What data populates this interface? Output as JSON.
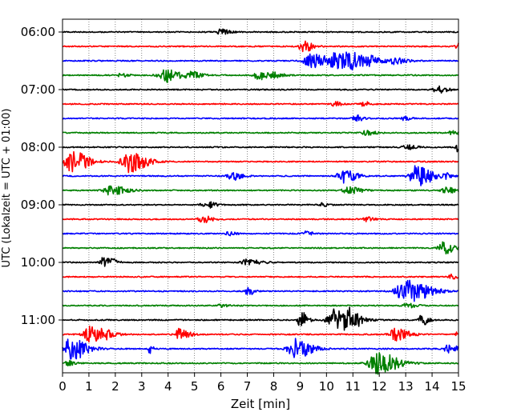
{
  "chart_data": {
    "type": "line",
    "title": "",
    "xlabel": "Zeit  [min]",
    "ylabel": "UTC (Lokalzeit = UTC + 01:00)",
    "xlim": [
      0,
      15
    ],
    "x_ticks": [
      0,
      1,
      2,
      3,
      4,
      5,
      6,
      7,
      8,
      9,
      10,
      11,
      12,
      13,
      14,
      15
    ],
    "x_tick_labels": [
      "0",
      "1",
      "2",
      "3",
      "4",
      "5",
      "6",
      "7",
      "8",
      "9",
      "10",
      "11",
      "12",
      "13",
      "14",
      "15"
    ],
    "y_tick_labels": [
      "06:00",
      "07:00",
      "08:00",
      "09:00",
      "10:00",
      "11:00"
    ],
    "grid": "vertical dotted",
    "colors": {
      "black": "#000000",
      "red": "#ff0000",
      "blue": "#0000ff",
      "green": "#008000"
    },
    "series": [
      {
        "start": "06:00",
        "color": "black",
        "events": [
          [
            6.0,
            0.25,
            0.3
          ]
        ]
      },
      {
        "start": "06:15",
        "color": "red",
        "events": [
          [
            9.1,
            0.5,
            0.3
          ],
          [
            15.0,
            0.3,
            0.2
          ]
        ]
      },
      {
        "start": "06:30",
        "color": "blue",
        "events": [
          [
            9.4,
            0.6,
            0.5
          ],
          [
            10.3,
            0.6,
            0.5
          ],
          [
            10.9,
            0.6,
            0.5
          ],
          [
            11.7,
            0.3,
            0.3
          ],
          [
            12.5,
            0.3,
            0.4
          ]
        ]
      },
      {
        "start": "06:45",
        "color": "green",
        "events": [
          [
            2.2,
            0.2,
            0.2
          ],
          [
            3.9,
            0.6,
            0.5
          ],
          [
            4.9,
            0.3,
            0.3
          ],
          [
            7.4,
            0.4,
            0.3
          ],
          [
            8.0,
            0.2,
            0.3
          ]
        ]
      },
      {
        "start": "07:00",
        "color": "black",
        "events": [
          [
            14.2,
            0.3,
            0.3
          ]
        ]
      },
      {
        "start": "07:15",
        "color": "red",
        "events": [
          [
            10.3,
            0.2,
            0.2
          ],
          [
            11.4,
            0.2,
            0.2
          ]
        ]
      },
      {
        "start": "07:30",
        "color": "blue",
        "events": [
          [
            11.1,
            0.3,
            0.2
          ],
          [
            12.9,
            0.2,
            0.2
          ]
        ]
      },
      {
        "start": "07:45",
        "color": "green",
        "events": [
          [
            11.5,
            0.2,
            0.3
          ],
          [
            14.8,
            0.2,
            0.3
          ]
        ]
      },
      {
        "start": "08:00",
        "color": "black",
        "events": [
          [
            13.0,
            0.2,
            0.3
          ],
          [
            15.0,
            0.5,
            0.2
          ]
        ]
      },
      {
        "start": "08:15",
        "color": "red",
        "events": [
          [
            0.3,
            1.0,
            0.5
          ],
          [
            2.5,
            1.0,
            0.5
          ]
        ]
      },
      {
        "start": "08:30",
        "color": "blue",
        "events": [
          [
            6.4,
            0.4,
            0.3
          ],
          [
            10.6,
            0.6,
            0.4
          ],
          [
            13.4,
            0.9,
            0.5
          ],
          [
            14.5,
            0.2,
            0.2
          ]
        ]
      },
      {
        "start": "08:45",
        "color": "green",
        "events": [
          [
            1.8,
            0.4,
            0.5
          ],
          [
            10.8,
            0.3,
            0.4
          ],
          [
            14.5,
            0.3,
            0.3
          ]
        ]
      },
      {
        "start": "09:00",
        "color": "black",
        "events": [
          [
            5.4,
            0.3,
            0.3
          ],
          [
            9.8,
            0.2,
            0.2
          ]
        ]
      },
      {
        "start": "09:15",
        "color": "red",
        "events": [
          [
            5.3,
            0.3,
            0.3
          ],
          [
            11.5,
            0.2,
            0.2
          ]
        ]
      },
      {
        "start": "09:30",
        "color": "blue",
        "events": [
          [
            6.3,
            0.2,
            0.2
          ],
          [
            9.2,
            0.2,
            0.2
          ]
        ]
      },
      {
        "start": "09:45",
        "color": "green",
        "events": [
          [
            14.4,
            0.6,
            0.3
          ]
        ]
      },
      {
        "start": "10:00",
        "color": "black",
        "events": [
          [
            1.6,
            0.6,
            0.3
          ],
          [
            7.0,
            0.3,
            0.4
          ]
        ]
      },
      {
        "start": "10:15",
        "color": "red",
        "events": [
          [
            14.7,
            0.2,
            0.2
          ]
        ]
      },
      {
        "start": "10:30",
        "color": "blue",
        "events": [
          [
            7.0,
            0.4,
            0.2
          ],
          [
            13.0,
            1.0,
            0.7
          ]
        ]
      },
      {
        "start": "10:45",
        "color": "green",
        "events": [
          [
            6.0,
            0.2,
            0.2
          ],
          [
            13.0,
            0.2,
            0.3
          ]
        ]
      },
      {
        "start": "11:00",
        "color": "black",
        "events": [
          [
            9.0,
            0.9,
            0.2
          ],
          [
            10.3,
            1.0,
            0.5
          ],
          [
            10.9,
            0.6,
            0.4
          ],
          [
            13.6,
            0.5,
            0.2
          ]
        ]
      },
      {
        "start": "11:15",
        "color": "red",
        "events": [
          [
            1.1,
            0.9,
            0.5
          ],
          [
            4.4,
            0.5,
            0.3
          ],
          [
            12.6,
            0.6,
            0.4
          ],
          [
            15.0,
            0.3,
            0.2
          ]
        ]
      },
      {
        "start": "11:30",
        "color": "blue",
        "events": [
          [
            0.3,
            1.0,
            0.5
          ],
          [
            3.3,
            0.4,
            0.1
          ],
          [
            8.8,
            0.9,
            0.5
          ],
          [
            14.6,
            0.4,
            0.3
          ]
        ]
      },
      {
        "start": "11:45",
        "color": "green",
        "events": [
          [
            11.9,
            1.0,
            0.6
          ],
          [
            0.2,
            0.3,
            0.2
          ]
        ]
      }
    ]
  }
}
